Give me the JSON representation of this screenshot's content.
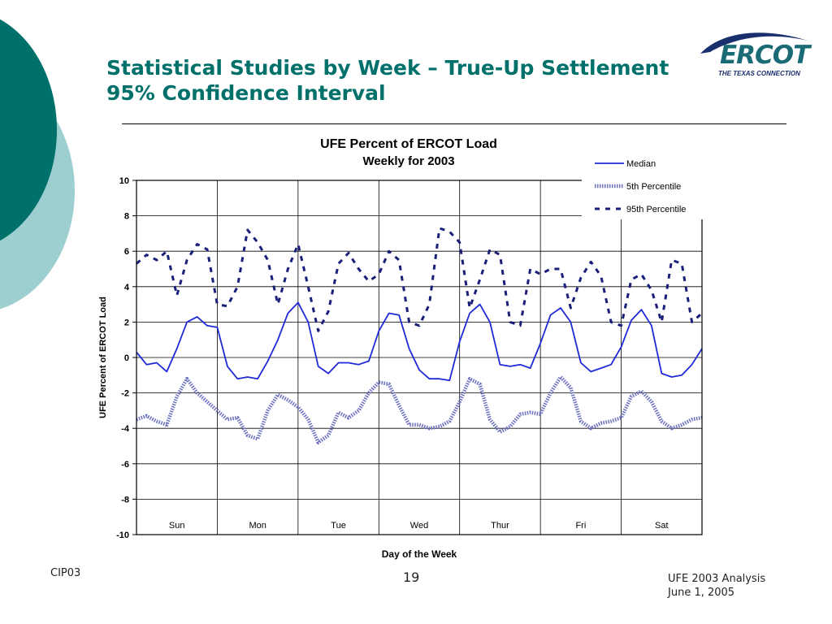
{
  "slide": {
    "title_line1": "Statistical Studies by Week – True-Up Settlement",
    "title_line2": "95% Confidence Interval",
    "footer_left": "CIP03",
    "page_number": "19",
    "footer_right": "UFE 2003 Analysis\nJune 1, 2005",
    "colors": {
      "title": "#00706b",
      "deco_dark": "#00706b",
      "deco_light": "#9ecfd0"
    }
  },
  "logo": {
    "name": "ERCOT",
    "tagline": "THE TEXAS CONNECTION"
  },
  "chart_data": {
    "type": "line",
    "title_line1": "UFE Percent of ERCOT Load",
    "title_line2": "Weekly for 2003",
    "xlabel": "Day of the Week",
    "ylabel": "UFE Percent of ERCOT Load",
    "ylim": [
      -10,
      10
    ],
    "yticks": [
      -10,
      -8,
      -6,
      -4,
      -2,
      0,
      2,
      4,
      6,
      8,
      10
    ],
    "grid": true,
    "legend": "top-right",
    "categories": [
      "Sun",
      "Mon",
      "Tue",
      "Wed",
      "Thur",
      "Fri",
      "Sat"
    ],
    "x_unit": "day of week (0 = start of Sun, 7 = end of Sat), sampled every 3 hours",
    "x": [
      0,
      0.125,
      0.25,
      0.375,
      0.5,
      0.625,
      0.75,
      0.875,
      1,
      1.125,
      1.25,
      1.375,
      1.5,
      1.625,
      1.75,
      1.875,
      2,
      2.125,
      2.25,
      2.375,
      2.5,
      2.625,
      2.75,
      2.875,
      3,
      3.125,
      3.25,
      3.375,
      3.5,
      3.625,
      3.75,
      3.875,
      4,
      4.125,
      4.25,
      4.375,
      4.5,
      4.625,
      4.75,
      4.875,
      5,
      5.125,
      5.25,
      5.375,
      5.5,
      5.625,
      5.75,
      5.875,
      6,
      6.125,
      6.25,
      6.375,
      6.5,
      6.625,
      6.75,
      6.875,
      7
    ],
    "series": [
      {
        "name": "Median",
        "color": "#1f2ad6",
        "style": "solid",
        "values": [
          0.3,
          -0.4,
          -0.3,
          -0.8,
          0.5,
          2.0,
          2.3,
          1.8,
          1.7,
          -0.5,
          -1.2,
          -1.1,
          -1.2,
          -0.2,
          1.0,
          2.5,
          3.1,
          2.0,
          -0.5,
          -0.9,
          -0.3,
          -0.3,
          -0.4,
          -0.2,
          1.5,
          2.5,
          2.4,
          0.5,
          -0.7,
          -1.2,
          -1.2,
          -1.3,
          0.9,
          2.5,
          3.0,
          2.0,
          -0.4,
          -0.5,
          -0.4,
          -0.6,
          0.8,
          2.4,
          2.8,
          2.0,
          -0.3,
          -0.8,
          -0.6,
          -0.4,
          0.6,
          2.1,
          2.7,
          1.8,
          -0.9,
          -1.1,
          -1.0,
          -0.4,
          0.5
        ]
      },
      {
        "name": "5th Percentile",
        "color": "#6a6fc0",
        "style": "hatched",
        "values": [
          -3.5,
          -3.3,
          -3.6,
          -3.8,
          -2.2,
          -1.2,
          -2.0,
          -2.5,
          -3.0,
          -3.5,
          -3.4,
          -4.4,
          -4.6,
          -3.0,
          -2.1,
          -2.4,
          -2.8,
          -3.5,
          -4.8,
          -4.4,
          -3.1,
          -3.4,
          -3.0,
          -2.0,
          -1.4,
          -1.5,
          -2.7,
          -3.8,
          -3.8,
          -4.0,
          -3.9,
          -3.6,
          -2.5,
          -1.2,
          -1.5,
          -3.5,
          -4.2,
          -3.9,
          -3.2,
          -3.1,
          -3.2,
          -2.0,
          -1.1,
          -1.7,
          -3.6,
          -4.0,
          -3.7,
          -3.6,
          -3.4,
          -2.2,
          -1.9,
          -2.5,
          -3.6,
          -4.0,
          -3.8,
          -3.5,
          -3.4
        ]
      },
      {
        "name": "95th Percentile",
        "color": "#1a1f7a",
        "style": "dashed",
        "values": [
          5.3,
          5.8,
          5.5,
          6.0,
          3.5,
          5.5,
          6.4,
          6.1,
          3.0,
          2.9,
          4.0,
          7.2,
          6.5,
          5.5,
          3.0,
          5.0,
          6.4,
          4.0,
          1.5,
          2.6,
          5.3,
          5.9,
          5.0,
          4.3,
          4.7,
          6.0,
          5.5,
          2.0,
          1.8,
          3.0,
          7.3,
          7.1,
          6.5,
          2.8,
          4.4,
          6.1,
          5.8,
          2.0,
          1.8,
          5.0,
          4.7,
          5.0,
          5.0,
          2.8,
          4.5,
          5.4,
          4.6,
          2.0,
          1.8,
          4.4,
          4.7,
          3.8,
          2.0,
          5.5,
          5.3,
          2.0,
          2.5
        ]
      }
    ]
  }
}
